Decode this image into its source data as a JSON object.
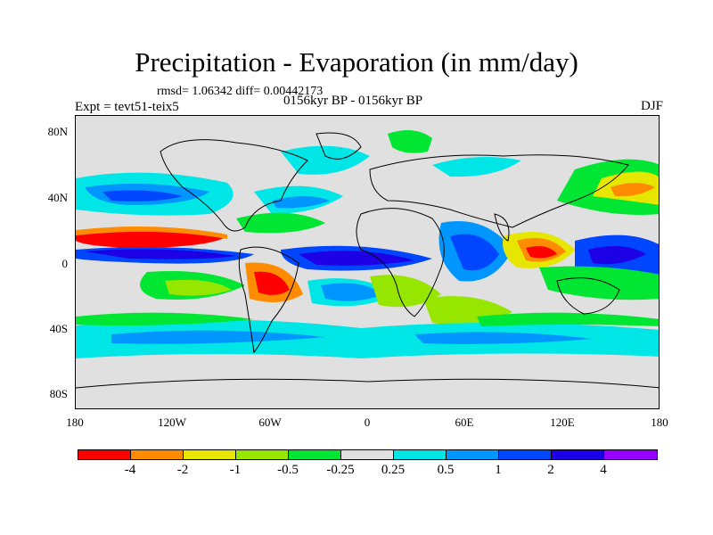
{
  "title": "Precipitation - Evaporation (in mm/day)",
  "stats": "rmsd= 1.06342 diff= 0.00442173",
  "experiment": "Expt = tevt51-teix5",
  "period": "0156kyr BP - 0156kyr BP",
  "season": "DJF",
  "lat_labels": [
    "80N",
    "40N",
    "0",
    "40S",
    "80S"
  ],
  "lon_labels": [
    "180",
    "120W",
    "60W",
    "0",
    "60E",
    "120E",
    "180"
  ],
  "colorbar": {
    "levels": [
      "-4",
      "-2",
      "-1",
      "-0.5",
      "-0.25",
      "0.25",
      "0.5",
      "1",
      "2",
      "4"
    ],
    "colors": [
      "#ff0000",
      "#ff8c00",
      "#e6e600",
      "#96e600",
      "#00e632",
      "#e0e0e0",
      "#00e6e6",
      "#0096ff",
      "#0046ff",
      "#1e00e6",
      "#9600ff"
    ]
  },
  "map": {
    "projection": "cylindrical equidistant",
    "lon_range": [
      -180,
      180
    ],
    "lat_range": [
      -90,
      90
    ],
    "background_color": "#e0e0e0"
  }
}
